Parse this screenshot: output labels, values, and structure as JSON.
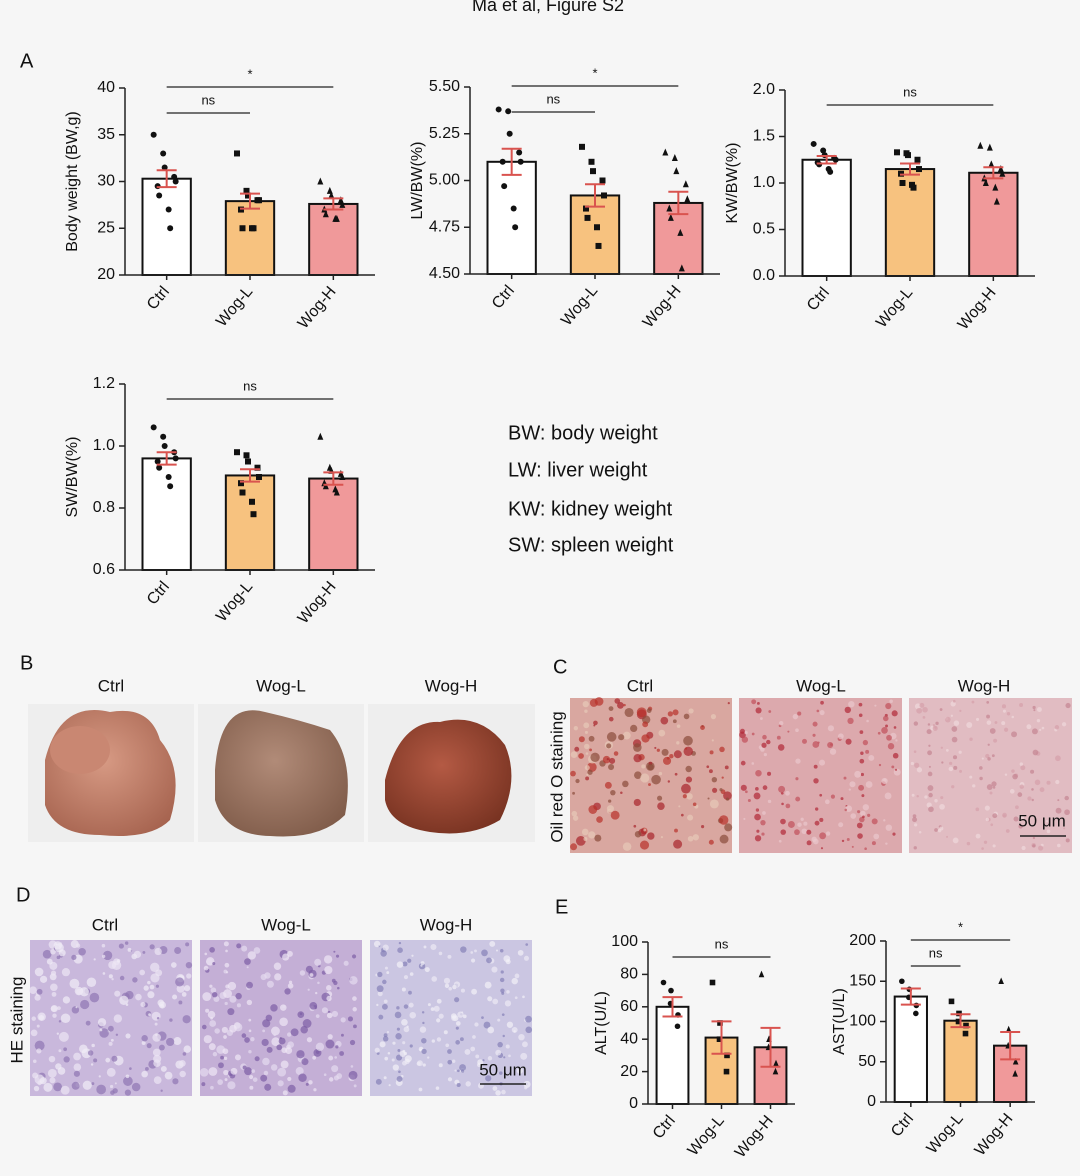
{
  "header": {
    "title": "Ma et al, Figure S2"
  },
  "panel_letters": [
    "A",
    "B",
    "C",
    "D",
    "E"
  ],
  "abbreviations": [
    "BW: body weight",
    "LW: liver weight",
    "KW: kidney weight",
    "SW: spleen weight"
  ],
  "images": {
    "B": {
      "labels": [
        "Ctrl",
        "Wog-L",
        "Wog-H"
      ]
    },
    "C": {
      "labels": [
        "Ctrl",
        "Wog-L",
        "Wog-H"
      ],
      "side_label": "Oil red O staining",
      "scale_bar": "50 μm"
    },
    "D": {
      "labels": [
        "Ctrl",
        "Wog-L",
        "Wog-H"
      ],
      "side_label": "HE staining",
      "scale_bar": "50 μm"
    }
  },
  "chart_data": [
    {
      "type": "bar",
      "y_label": "Body weight (BW,g)",
      "categories": [
        "Ctrl",
        "Wog-L",
        "Wog-H"
      ],
      "values": [
        30.3,
        27.9,
        27.6
      ],
      "errors": [
        0.9,
        0.8,
        0.6
      ],
      "colors": [
        "#ffffff",
        "#f7c27f",
        "#f0999a"
      ],
      "error_color": "#d9534f",
      "markers": [
        "circle",
        "square",
        "triangle"
      ],
      "points": [
        [
          35,
          33,
          31.5,
          30.5,
          30,
          29.5,
          28.5,
          27,
          25
        ],
        [
          33,
          29,
          28.5,
          28,
          28,
          27,
          25,
          25,
          25
        ],
        [
          30,
          29,
          28.5,
          28,
          27.5,
          27,
          26.5,
          26,
          26
        ]
      ],
      "ylim": [
        20,
        40
      ],
      "yticks": [
        20,
        25,
        30,
        35,
        40
      ],
      "significance": [
        {
          "label": "ns",
          "from": 0,
          "to": 1
        },
        {
          "label": "*",
          "from": 0,
          "to": 2
        }
      ]
    },
    {
      "type": "bar",
      "y_label": "LW/BW(%)",
      "categories": [
        "Ctrl",
        "Wog-L",
        "Wog-H"
      ],
      "values": [
        5.1,
        4.92,
        4.88
      ],
      "errors": [
        0.07,
        0.06,
        0.06
      ],
      "colors": [
        "#ffffff",
        "#f7c27f",
        "#f0999a"
      ],
      "error_color": "#d9534f",
      "markers": [
        "circle",
        "square",
        "triangle"
      ],
      "points": [
        [
          5.38,
          5.37,
          5.25,
          5.15,
          5.1,
          5.1,
          4.97,
          4.85,
          4.75
        ],
        [
          5.18,
          5.1,
          5.05,
          5.0,
          4.92,
          4.85,
          4.8,
          4.75,
          4.65
        ],
        [
          5.15,
          5.12,
          5.05,
          4.98,
          4.9,
          4.85,
          4.8,
          4.72,
          4.53
        ]
      ],
      "ylim": [
        4.5,
        5.5
      ],
      "yticks": [
        {
          "value": 4.5,
          "label": "4.50"
        },
        4.75,
        {
          "value": 5,
          "label": "5.00"
        },
        5.25,
        {
          "value": 5.5,
          "label": "5.50"
        }
      ],
      "significance": [
        {
          "label": "ns",
          "from": 0,
          "to": 1
        },
        {
          "label": "*",
          "from": 0,
          "to": 2
        }
      ]
    },
    {
      "type": "bar",
      "y_label": "KW/BW(%)",
      "categories": [
        "Ctrl",
        "Wog-L",
        "Wog-H"
      ],
      "values": [
        1.25,
        1.15,
        1.11
      ],
      "errors": [
        0.04,
        0.06,
        0.06
      ],
      "colors": [
        "#ffffff",
        "#f7c27f",
        "#f0999a"
      ],
      "error_color": "#d9534f",
      "markers": [
        "circle",
        "square",
        "triangle"
      ],
      "points": [
        [
          1.42,
          1.35,
          1.3,
          1.27,
          1.25,
          1.22,
          1.2,
          1.15,
          1.12
        ],
        [
          1.33,
          1.32,
          1.3,
          1.25,
          1.15,
          1.1,
          1.0,
          0.98,
          0.95
        ],
        [
          1.4,
          1.38,
          1.2,
          1.15,
          1.1,
          1.05,
          1.0,
          0.95,
          0.8
        ]
      ],
      "ylim": [
        0,
        2
      ],
      "yticks": [
        {
          "value": 0,
          "label": "0.0"
        },
        0.5,
        {
          "value": 1,
          "label": "1.0"
        },
        1.5,
        {
          "value": 2,
          "label": "2.0"
        }
      ],
      "significance": [
        {
          "label": "ns",
          "from": 0,
          "to": 2
        }
      ]
    },
    {
      "type": "bar",
      "y_label": "SW/BW(%)",
      "categories": [
        "Ctrl",
        "Wog-L",
        "Wog-H"
      ],
      "values": [
        0.96,
        0.905,
        0.895
      ],
      "errors": [
        0.02,
        0.02,
        0.02
      ],
      "colors": [
        "#ffffff",
        "#f7c27f",
        "#f0999a"
      ],
      "error_color": "#d9534f",
      "markers": [
        "circle",
        "square",
        "triangle"
      ],
      "points": [
        [
          1.06,
          1.03,
          1.0,
          0.98,
          0.96,
          0.95,
          0.93,
          0.9,
          0.87
        ],
        [
          0.98,
          0.97,
          0.95,
          0.93,
          0.9,
          0.88,
          0.85,
          0.82,
          0.78
        ],
        [
          1.03,
          0.93,
          0.92,
          0.91,
          0.9,
          0.88,
          0.87,
          0.86,
          0.85
        ]
      ],
      "ylim": [
        0.6,
        1.2
      ],
      "yticks": [
        0.6,
        0.8,
        {
          "value": 1,
          "label": "1.0"
        },
        1.2
      ],
      "significance": [
        {
          "label": "ns",
          "from": 0,
          "to": 2
        }
      ]
    },
    {
      "type": "bar",
      "y_label": "ALT(U/L)",
      "categories": [
        "Ctrl",
        "Wog-L",
        "Wog-H"
      ],
      "values": [
        60,
        41,
        35
      ],
      "errors": [
        6,
        10,
        12
      ],
      "colors": [
        "#ffffff",
        "#f7c27f",
        "#f0999a"
      ],
      "error_color": "#d9534f",
      "markers": [
        "circle",
        "square",
        "triangle"
      ],
      "points": [
        [
          75,
          70,
          62,
          55,
          48
        ],
        [
          75,
          50,
          40,
          30,
          20
        ],
        [
          80,
          40,
          35,
          25,
          20
        ]
      ],
      "ylim": [
        0,
        100
      ],
      "yticks": [
        0,
        20,
        40,
        60,
        80,
        100
      ],
      "significance": [
        {
          "label": "ns",
          "from": 0,
          "to": 2
        }
      ]
    },
    {
      "type": "bar",
      "y_label": "AST(U/L)",
      "categories": [
        "Ctrl",
        "Wog-L",
        "Wog-H"
      ],
      "values": [
        131,
        101,
        70
      ],
      "errors": [
        10,
        8,
        17
      ],
      "colors": [
        "#ffffff",
        "#f7c27f",
        "#f0999a"
      ],
      "error_color": "#d9534f",
      "markers": [
        "circle",
        "square",
        "triangle"
      ],
      "points": [
        [
          150,
          140,
          130,
          120,
          110
        ],
        [
          125,
          110,
          100,
          95,
          85
        ],
        [
          150,
          90,
          70,
          50,
          35
        ]
      ],
      "ylim": [
        0,
        200
      ],
      "yticks": [
        0,
        50,
        100,
        150,
        200
      ],
      "significance": [
        {
          "label": "ns",
          "from": 0,
          "to": 1
        },
        {
          "label": "*",
          "from": 0,
          "to": 2
        }
      ]
    }
  ]
}
